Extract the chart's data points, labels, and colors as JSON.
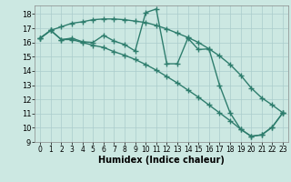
{
  "xlabel": "Humidex (Indice chaleur)",
  "x_values": [
    0,
    1,
    2,
    3,
    4,
    5,
    6,
    7,
    8,
    9,
    10,
    11,
    12,
    13,
    14,
    15,
    16,
    17,
    18,
    19,
    20,
    21,
    22,
    23
  ],
  "upper_line": [
    16.3,
    16.85,
    17.1,
    17.35,
    17.45,
    17.6,
    17.65,
    17.65,
    17.6,
    17.5,
    17.4,
    17.2,
    16.95,
    16.65,
    16.35,
    16.0,
    15.55,
    15.05,
    14.45,
    13.7,
    12.8,
    12.1,
    11.6,
    11.05
  ],
  "lower_line": [
    16.3,
    16.85,
    16.2,
    16.2,
    16.0,
    15.8,
    15.65,
    15.35,
    15.1,
    14.8,
    14.45,
    14.05,
    13.6,
    13.15,
    12.65,
    12.15,
    11.6,
    11.05,
    10.5,
    9.9,
    9.4,
    9.5,
    10.05,
    11.05
  ],
  "zigzag_line": [
    16.3,
    16.85,
    16.2,
    16.3,
    16.05,
    16.0,
    16.5,
    16.1,
    15.85,
    15.4,
    18.1,
    18.35,
    14.5,
    14.5,
    16.3,
    15.5,
    15.55,
    13.0,
    11.05,
    9.9,
    9.4,
    9.5,
    10.05,
    11.05
  ],
  "line_color": "#2e7d6d",
  "bg_color": "#cce8e2",
  "grid_color": "#aacccc",
  "ylim": [
    9,
    18.6
  ],
  "yticks": [
    9,
    10,
    11,
    12,
    13,
    14,
    15,
    16,
    17,
    18
  ],
  "xticks": [
    0,
    1,
    2,
    3,
    4,
    5,
    6,
    7,
    8,
    9,
    10,
    11,
    12,
    13,
    14,
    15,
    16,
    17,
    18,
    19,
    20,
    21,
    22,
    23
  ],
  "markersize": 2.5,
  "linewidth": 1.0
}
